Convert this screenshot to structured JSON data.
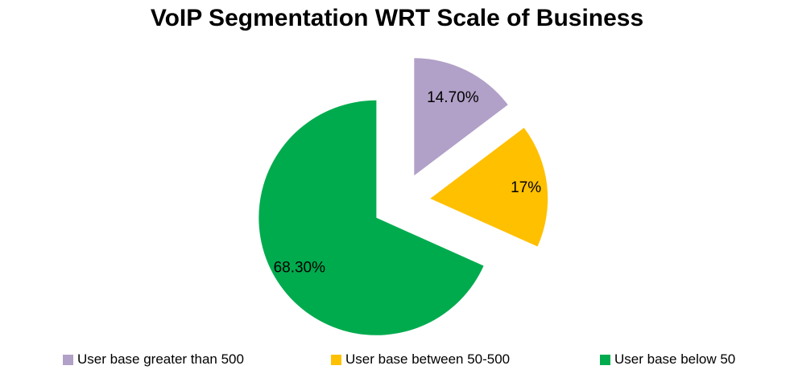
{
  "chart_data": {
    "type": "pie",
    "title": "VoIP Segmentation WRT Scale of Business",
    "slices": [
      {
        "name": "User base greater than 500",
        "value": 14.7,
        "label": "14.70%",
        "color": "#B1A0C7"
      },
      {
        "name": "User base between 50-500",
        "value": 17,
        "label": "17%",
        "color": "#FFC000"
      },
      {
        "name": "User base below 50",
        "value": 68.3,
        "label": "68.30%",
        "color": "#00AB4E"
      }
    ],
    "start_angle_deg": 0,
    "direction": "clockwise",
    "exploded": true,
    "explode_pct": 25,
    "legend_position": "bottom",
    "label_color": "#000000",
    "background": "#FFFFFF"
  }
}
